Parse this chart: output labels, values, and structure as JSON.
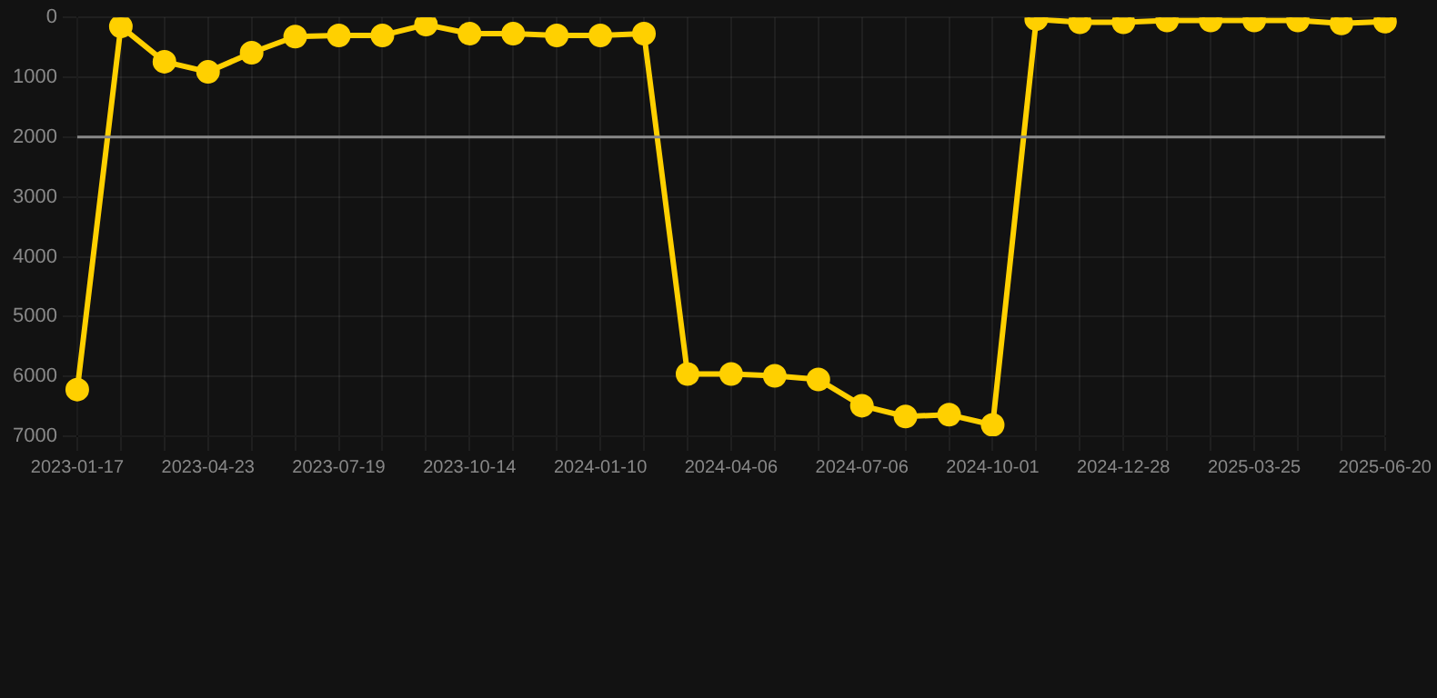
{
  "chart_data": {
    "type": "line",
    "categories": [
      "2023-01-17",
      null,
      null,
      "2023-04-23",
      null,
      null,
      "2023-07-19",
      null,
      null,
      "2023-10-14",
      null,
      null,
      "2024-01-10",
      null,
      null,
      "2024-04-06",
      null,
      null,
      "2024-07-06",
      null,
      null,
      "2024-10-01",
      null,
      null,
      "2024-12-28",
      null,
      null,
      "2025-03-25",
      null,
      null,
      "2025-06-20"
    ],
    "series": [
      {
        "color": "#ffd000",
        "values": [
          6220,
          150,
          740,
          910,
          590,
          320,
          300,
          300,
          120,
          270,
          270,
          300,
          300,
          270,
          5960,
          5960,
          5990,
          6050,
          6490,
          6670,
          6640,
          6810,
          30,
          80,
          80,
          50,
          50,
          50,
          50,
          100,
          70
        ]
      }
    ],
    "ylim": [
      7000,
      0
    ],
    "yticks": [
      0,
      1000,
      2000,
      3000,
      4000,
      5000,
      6000,
      7000
    ],
    "ref_lines": [
      {
        "axis": "y",
        "value": 2000,
        "color": "#888888"
      }
    ],
    "grid": true,
    "marker": "circle",
    "line_style": "solid",
    "legend": false
  }
}
